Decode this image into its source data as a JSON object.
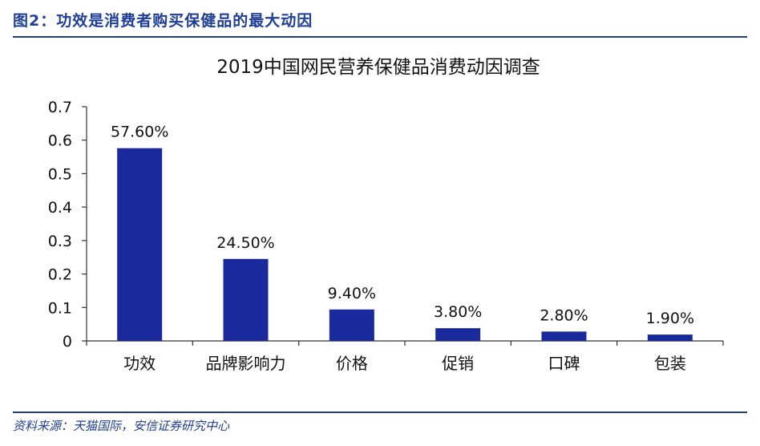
{
  "header": {
    "figure_title": "图2：功效是消费者购买保健品的最大动因"
  },
  "source": {
    "text": "资料来源：天猫国际，安信证券研究中心"
  },
  "colors": {
    "bar": "#1a2a9c",
    "header": "#1f3f97",
    "axis": "#333333"
  },
  "chart_data": {
    "type": "bar",
    "title": "2019中国网民营养保健品消费动因调查",
    "categories": [
      "功效",
      "品牌影响力",
      "价格",
      "促销",
      "口碑",
      "包装"
    ],
    "values": [
      0.576,
      0.245,
      0.094,
      0.038,
      0.028,
      0.019
    ],
    "data_labels": [
      "57.60%",
      "24.50%",
      "9.40%",
      "3.80%",
      "2.80%",
      "1.90%"
    ],
    "y_ticks": [
      "0",
      "0.1",
      "0.2",
      "0.3",
      "0.4",
      "0.5",
      "0.6",
      "0.7"
    ],
    "ylim": [
      0,
      0.7
    ],
    "xlabel": "",
    "ylabel": "",
    "grid": false,
    "legend": "none"
  }
}
